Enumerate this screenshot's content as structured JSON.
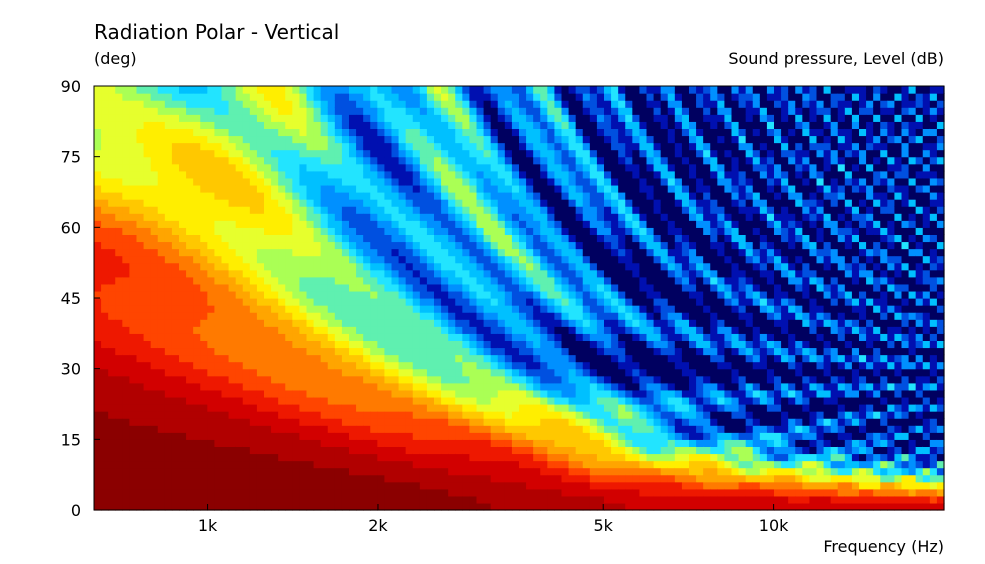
{
  "chart_data": {
    "type": "heatmap",
    "title": "Radiation Polar - Vertical",
    "ylabel": "(deg)",
    "xlabel": "Frequency  (Hz)",
    "colorbar_label": "Sound pressure, Level  (dB)",
    "x_scale": "log",
    "xlim": [
      630,
      20000
    ],
    "ylim": [
      0,
      90
    ],
    "x_ticks": [
      {
        "value": 1000,
        "label": "1k"
      },
      {
        "value": 2000,
        "label": "2k"
      },
      {
        "value": 5000,
        "label": "5k"
      },
      {
        "value": 10000,
        "label": "10k"
      }
    ],
    "y_ticks": [
      0,
      15,
      30,
      45,
      60,
      75,
      90
    ],
    "colormap": [
      "#8b0000",
      "#b10000",
      "#d20000",
      "#ee1800",
      "#ff4500",
      "#ff7a00",
      "#ffa500",
      "#ffc800",
      "#ffee00",
      "#e6ff2d",
      "#aaff55",
      "#5ff0b0",
      "#22e4ff",
      "#00c0ff",
      "#0090ff",
      "#0050e0",
      "#0010b0",
      "#000060"
    ],
    "grid": false
  }
}
